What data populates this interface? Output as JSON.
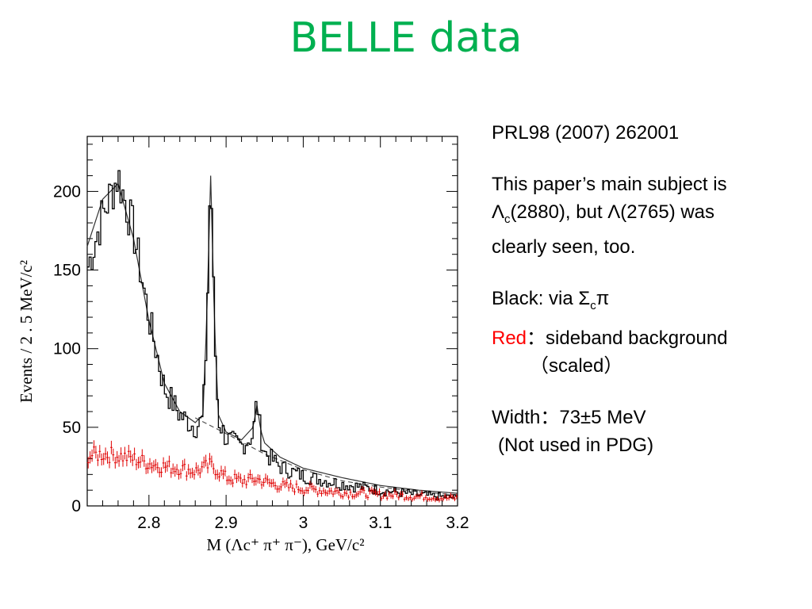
{
  "slide": {
    "title": "BELLE data",
    "reference": "PRL98 (2007) 262001",
    "subject_line1": "This paper’s main subject is",
    "subject_lambda": "Λ",
    "subject_sub": "c",
    "subject_rest": "(2880), but Λ(2765) was",
    "subject_line3": "clearly seen, too.",
    "black_prefix": "Black: via Σ",
    "black_sub": "c",
    "black_suffix": "π",
    "red_word": "Red",
    "red_rest": "：sideband background",
    "red_scaled": "（scaled）",
    "width_line": "Width：73±5 MeV",
    "not_used": "(Not used in PDG)"
  },
  "colors": {
    "title": "#00b050",
    "signal": "#000000",
    "sideband": "#e00000",
    "highlight": "#ff0000"
  },
  "chart_data": {
    "type": "line",
    "ylabel": "Events / 2 . 5 MeV/c²",
    "xlabel": "M (Λc⁺ π⁺ π⁻),  GeV/c²",
    "xlim": [
      2.72,
      3.2
    ],
    "ylim": [
      0,
      235
    ],
    "xticks": [
      "2.8",
      "2.9",
      "3",
      "3.1",
      "3.2"
    ],
    "yticks": [
      "0",
      "50",
      "100",
      "150",
      "200"
    ],
    "series": [
      {
        "style": "black-histogram",
        "x": [
          2.72,
          2.74,
          2.76,
          2.78,
          2.8,
          2.82,
          2.84,
          2.86,
          2.87,
          2.875,
          2.88,
          2.885,
          2.89,
          2.9,
          2.92,
          2.935,
          2.94,
          2.945,
          2.95,
          2.97,
          3.0,
          3.05,
          3.1,
          3.15,
          3.2
        ],
        "values": [
          150,
          185,
          210,
          175,
          120,
          75,
          58,
          50,
          55,
          110,
          218,
          110,
          55,
          43,
          38,
          45,
          68,
          45,
          34,
          25,
          19,
          14,
          10,
          7,
          5
        ]
      },
      {
        "style": "fit-curve",
        "x": [
          2.72,
          2.74,
          2.76,
          2.78,
          2.8,
          2.82,
          2.84,
          2.86,
          2.87,
          2.875,
          2.88,
          2.885,
          2.89,
          2.9,
          2.92,
          2.935,
          2.94,
          2.945,
          2.95,
          2.97,
          3.0,
          3.05,
          3.1,
          3.15,
          3.2
        ],
        "values": [
          165,
          195,
          205,
          170,
          118,
          78,
          60,
          53,
          58,
          120,
          210,
          115,
          58,
          47,
          42,
          50,
          64,
          48,
          40,
          31,
          24,
          18,
          13,
          10,
          8
        ]
      },
      {
        "style": "dashed-background",
        "x": [
          2.86,
          2.9,
          2.95,
          3.0,
          3.05,
          3.1,
          3.15,
          3.2
        ],
        "values": [
          56,
          46,
          33,
          23,
          16,
          12,
          9,
          7
        ]
      },
      {
        "style": "red-sideband-points",
        "x": [
          2.72,
          2.74,
          2.76,
          2.78,
          2.8,
          2.82,
          2.84,
          2.86,
          2.88,
          2.9,
          2.92,
          2.94,
          2.96,
          2.98,
          3.0,
          3.02,
          3.04,
          3.06,
          3.08,
          3.1,
          3.12,
          3.14,
          3.16,
          3.18,
          3.2
        ],
        "values": [
          32,
          33,
          32,
          30,
          27,
          25,
          24,
          22,
          26,
          18,
          16,
          17,
          14,
          12,
          11,
          10,
          9,
          8,
          8,
          7,
          7,
          6,
          6,
          5,
          5
        ]
      }
    ]
  }
}
